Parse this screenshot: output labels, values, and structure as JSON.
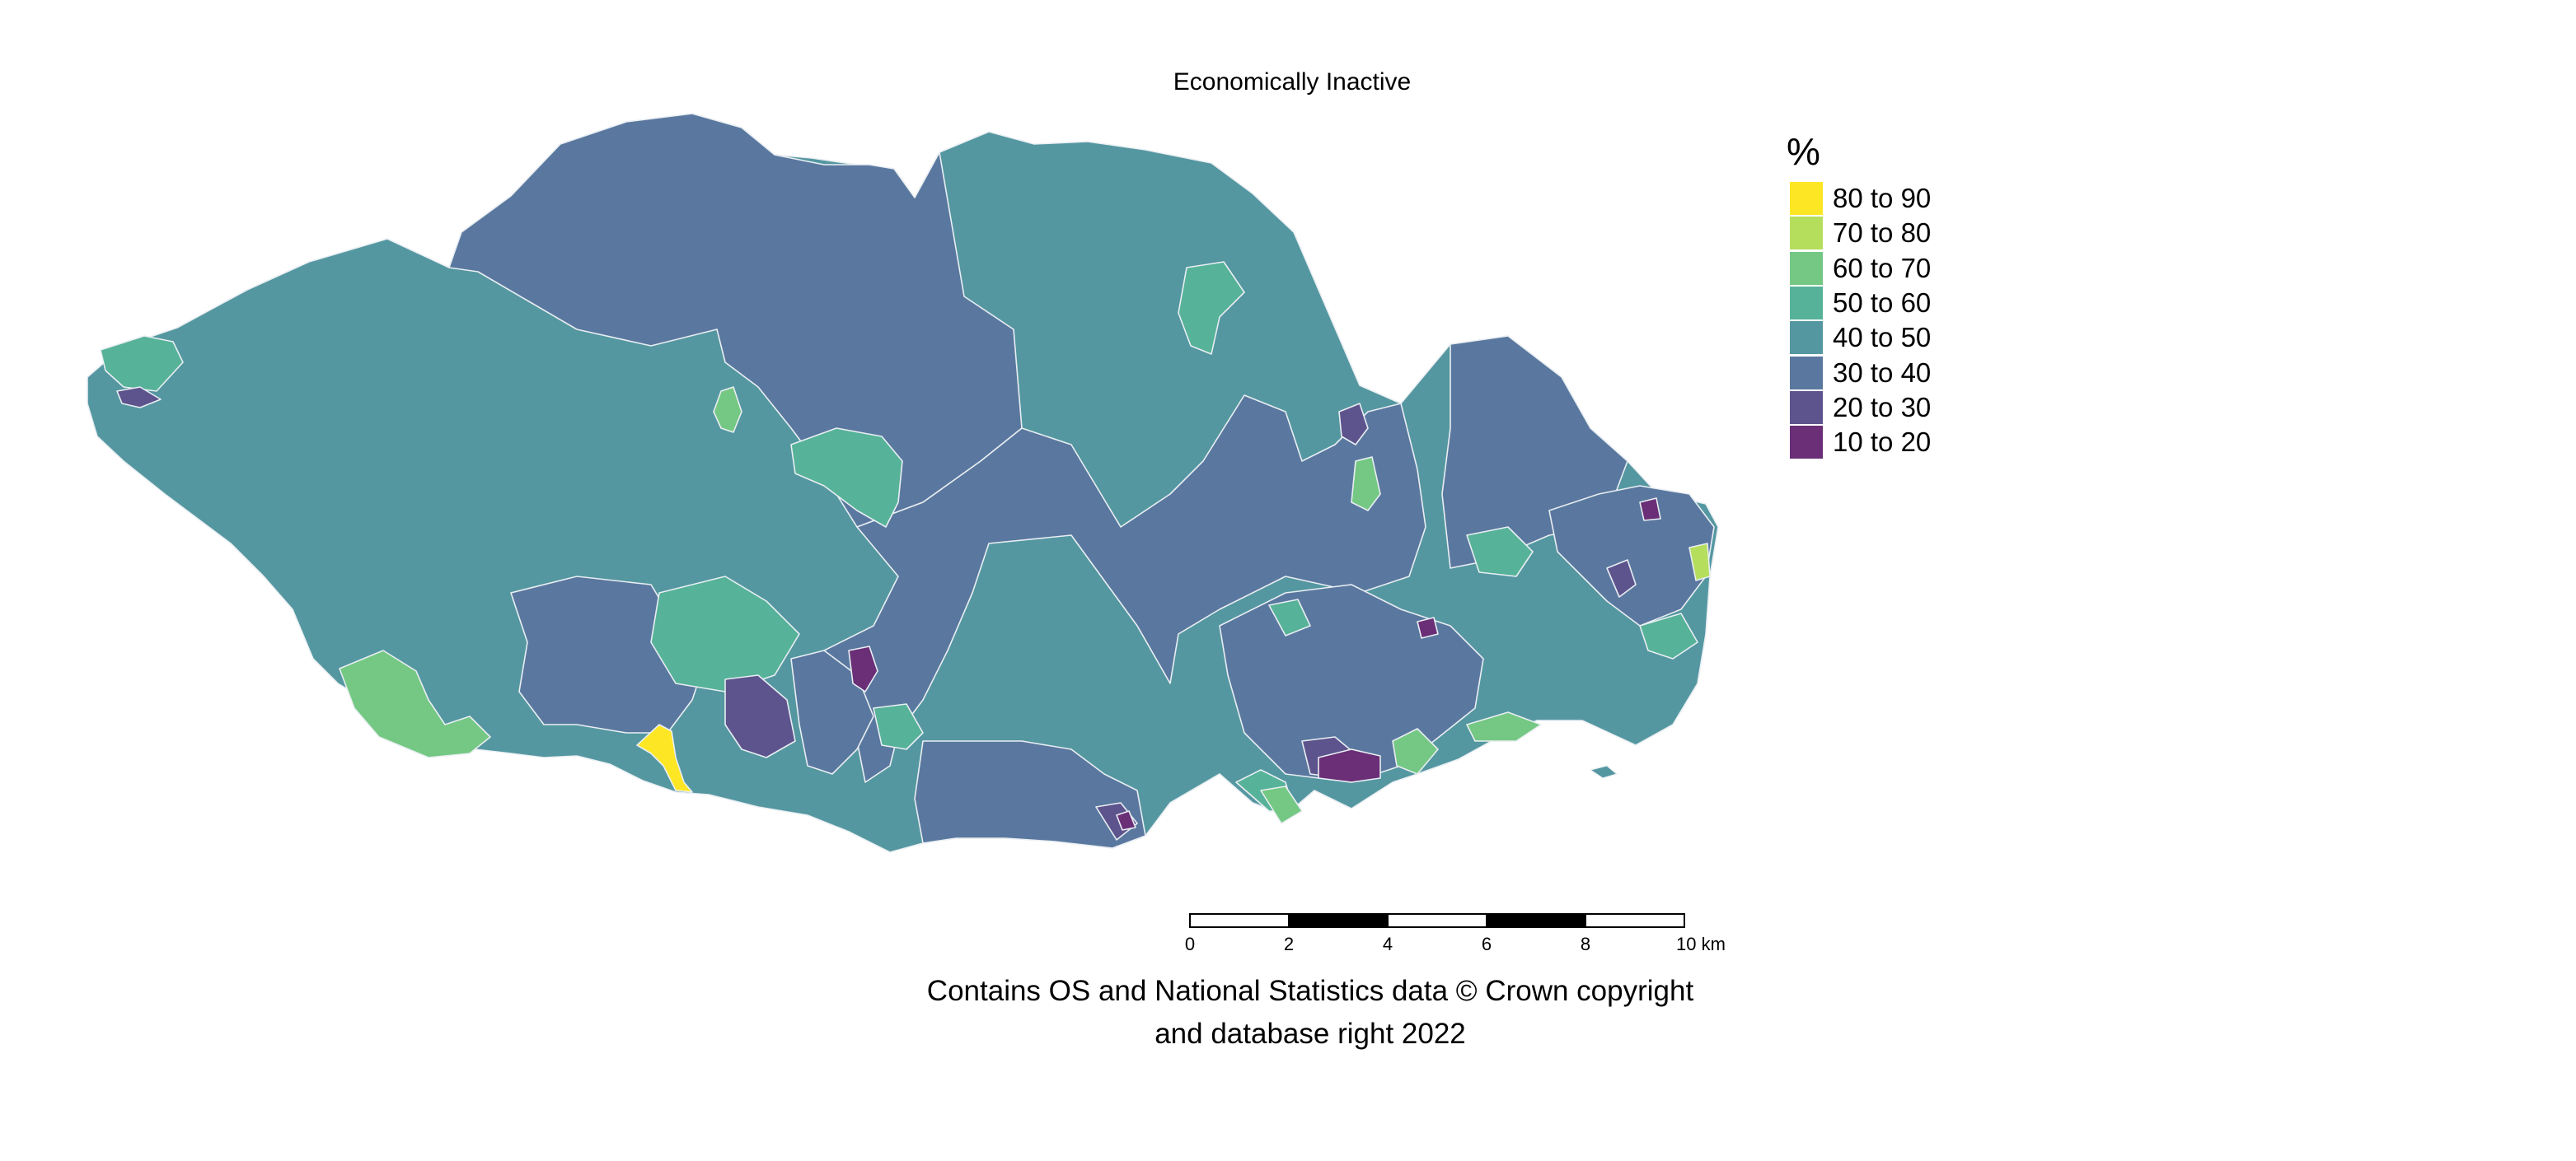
{
  "title": "Economically Inactive",
  "legend": {
    "title": "%",
    "items": [
      {
        "label": "80 to 90",
        "color": "#fde725"
      },
      {
        "label": "70 to 80",
        "color": "#b5de5d"
      },
      {
        "label": "60 to 70",
        "color": "#74c883"
      },
      {
        "label": "50 to 60",
        "color": "#56b298"
      },
      {
        "label": "40 to 50",
        "color": "#5497a1"
      },
      {
        "label": "30 to 40",
        "color": "#5a789f"
      },
      {
        "label": "20 to 30",
        "color": "#5d548e"
      },
      {
        "label": "10 to 20",
        "color": "#6a2f77"
      }
    ]
  },
  "scale_bar": {
    "ticks": [
      "0",
      "2",
      "4",
      "6",
      "8",
      "10 km"
    ]
  },
  "credit": {
    "line1": "Contains OS and National Statistics data © Crown copyright",
    "line2": "and database right 2022"
  }
}
